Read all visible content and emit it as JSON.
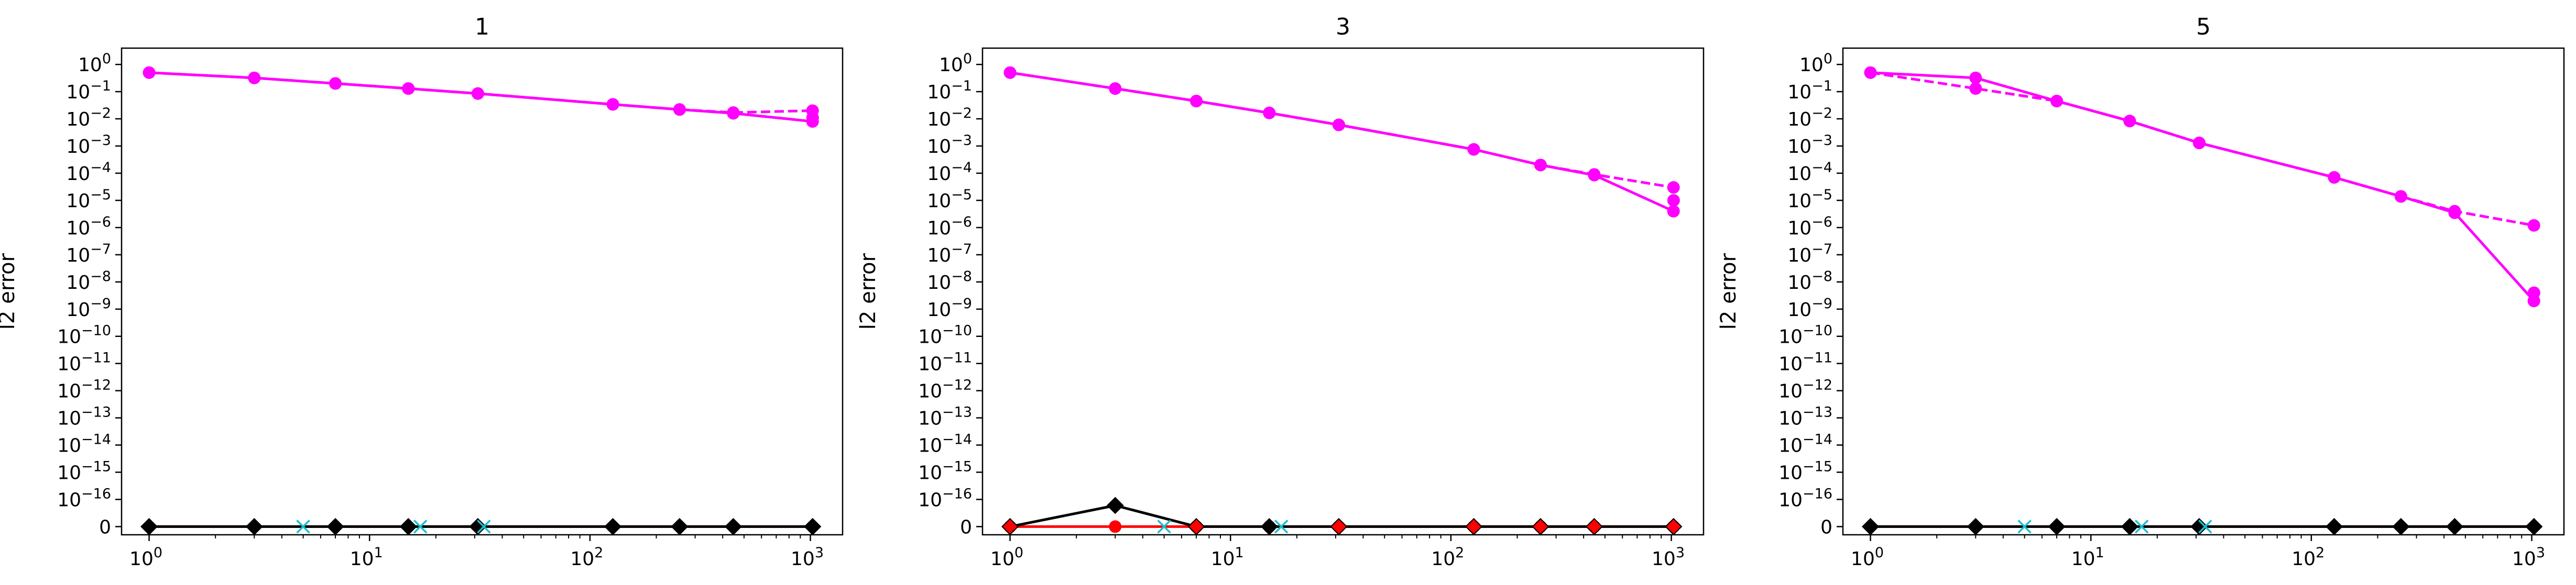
{
  "chart_data": [
    {
      "type": "line",
      "title": "1",
      "xlabel": "",
      "ylabel": "l2 error",
      "xscale": "log",
      "yscale": "symlog",
      "xlim": [
        0.75,
        1400
      ],
      "ylim": [
        -0.3,
        17.6
      ],
      "x_ticks": [
        "10^0",
        "10^1",
        "10^2",
        "10^3"
      ],
      "y_ticks": [
        "0",
        "10^-16",
        "10^-15",
        "10^-14",
        "10^-13",
        "10^-12",
        "10^-11",
        "10^-10",
        "10^-9",
        "10^-8",
        "10^-7",
        "10^-6",
        "10^-5",
        "10^-4",
        "10^-3",
        "10^-2",
        "10^-1",
        "10^0"
      ],
      "grid": false,
      "legend": "none",
      "series": [
        {
          "color": "#ff00ff",
          "style": "solid",
          "marker": "circle",
          "x": [
            1,
            3,
            7,
            15,
            31,
            127,
            255,
            447,
            1023,
            1024
          ],
          "y": [
            0.5,
            0.32,
            0.2,
            0.13,
            0.085,
            0.034,
            0.022,
            0.016,
            0.008,
            0.011
          ]
        },
        {
          "color": "#ff00ff",
          "style": "dashed",
          "marker": "circle",
          "x": [
            1,
            3,
            7,
            15,
            31,
            127,
            255,
            447,
            1023
          ],
          "y": [
            0.5,
            0.32,
            0.2,
            0.13,
            0.085,
            0.034,
            0.022,
            0.017,
            0.02
          ]
        },
        {
          "color": "#ff0000",
          "style": "solid",
          "marker": "diamond",
          "x": [
            1,
            3,
            7,
            15,
            31,
            127,
            255,
            447,
            1023,
            1024
          ],
          "y": [
            0,
            0,
            0,
            0,
            0,
            0,
            0,
            0,
            0,
            0
          ]
        },
        {
          "color": "#000000",
          "style": "solid",
          "marker": "diamond",
          "x": [
            1,
            3,
            7,
            15,
            31,
            127,
            255,
            447,
            1023,
            1024
          ],
          "y": [
            0,
            0,
            0,
            0,
            0,
            0,
            0,
            0,
            0,
            0
          ]
        },
        {
          "color": "#17becf",
          "style": "none",
          "marker": "x",
          "x": [
            5,
            17,
            33
          ],
          "y": [
            0,
            0,
            0
          ]
        }
      ]
    },
    {
      "type": "line",
      "title": "3",
      "xlabel": "",
      "ylabel": "l2 error",
      "xscale": "log",
      "yscale": "symlog",
      "xlim": [
        0.75,
        1400
      ],
      "ylim": [
        -0.3,
        17.6
      ],
      "x_ticks": [
        "10^0",
        "10^1",
        "10^2",
        "10^3"
      ],
      "y_ticks": [
        "0",
        "10^-16",
        "10^-15",
        "10^-14",
        "10^-13",
        "10^-12",
        "10^-11",
        "10^-10",
        "10^-9",
        "10^-8",
        "10^-7",
        "10^-6",
        "10^-5",
        "10^-4",
        "10^-3",
        "10^-2",
        "10^-1",
        "10^0"
      ],
      "grid": false,
      "legend": "none",
      "series": [
        {
          "color": "#ff00ff",
          "style": "solid",
          "marker": "circle",
          "x": [
            1,
            3,
            7,
            15,
            31,
            127,
            255,
            447,
            1023,
            1024
          ],
          "y": [
            0.5,
            0.13,
            0.045,
            0.0165,
            0.006,
            0.00075,
            0.0002,
            8.5e-05,
            4e-06,
            1e-05
          ]
        },
        {
          "color": "#ff00ff",
          "style": "dashed",
          "marker": "circle",
          "x": [
            1,
            3,
            7,
            15,
            31,
            127,
            255,
            447,
            1023
          ],
          "y": [
            0.5,
            0.13,
            0.045,
            0.0165,
            0.006,
            0.00075,
            0.0002,
            9e-05,
            3e-05
          ]
        },
        {
          "color": "#ff0000",
          "style": "solid",
          "marker": "circle",
          "x": [
            1,
            3,
            7,
            15,
            31,
            127,
            255,
            447,
            1023,
            1024
          ],
          "y": [
            0,
            0,
            0,
            0,
            0,
            0,
            0,
            0,
            0,
            0
          ]
        },
        {
          "color": "#000000",
          "style": "solid",
          "marker": "diamond",
          "x": [
            1,
            3,
            7,
            15,
            31,
            127,
            255,
            447,
            1023,
            1024
          ],
          "y": [
            0,
            6e-17,
            0,
            0,
            0,
            0,
            0,
            0,
            0,
            0
          ]
        },
        {
          "color": "#ff0000",
          "style": "none",
          "marker": "diamond",
          "x": [
            1,
            7,
            31,
            127,
            255,
            447,
            1024
          ],
          "y": [
            0,
            0,
            0,
            0,
            0,
            0,
            0
          ]
        },
        {
          "color": "#17becf",
          "style": "none",
          "marker": "x",
          "x": [
            5,
            17
          ],
          "y": [
            0,
            0
          ]
        }
      ]
    },
    {
      "type": "line",
      "title": "5",
      "xlabel": "",
      "ylabel": "l2 error",
      "xscale": "log",
      "yscale": "symlog",
      "xlim": [
        0.75,
        1400
      ],
      "ylim": [
        -0.3,
        17.6
      ],
      "x_ticks": [
        "10^0",
        "10^1",
        "10^2",
        "10^3"
      ],
      "y_ticks": [
        "0",
        "10^-16",
        "10^-15",
        "10^-14",
        "10^-13",
        "10^-12",
        "10^-11",
        "10^-10",
        "10^-9",
        "10^-8",
        "10^-7",
        "10^-6",
        "10^-5",
        "10^-4",
        "10^-3",
        "10^-2",
        "10^-1",
        "10^0"
      ],
      "grid": false,
      "legend": "none",
      "series": [
        {
          "color": "#ff00ff",
          "style": "solid",
          "marker": "circle",
          "x": [
            1,
            3,
            7,
            15,
            31,
            127,
            255,
            447,
            1023,
            1024
          ],
          "y": [
            0.5,
            0.32,
            0.045,
            0.0083,
            0.0013,
            7e-05,
            1.4e-05,
            3.5e-06,
            2e-09,
            4e-09
          ]
        },
        {
          "color": "#ff00ff",
          "style": "dashed",
          "marker": "circle",
          "x": [
            1,
            3,
            7,
            15,
            31,
            127,
            255,
            447,
            1023
          ],
          "y": [
            0.5,
            0.13,
            0.045,
            0.0083,
            0.0013,
            7e-05,
            1.4e-05,
            4e-06,
            1.2e-06
          ]
        },
        {
          "color": "#ff0000",
          "style": "solid",
          "marker": "diamond",
          "x": [
            1,
            3,
            7,
            15,
            31,
            127,
            255,
            447,
            1023,
            1024
          ],
          "y": [
            0,
            0,
            0,
            0,
            0,
            0,
            0,
            0,
            0,
            0
          ]
        },
        {
          "color": "#000000",
          "style": "solid",
          "marker": "diamond",
          "x": [
            1,
            3,
            7,
            15,
            31,
            127,
            255,
            447,
            1023,
            1024
          ],
          "y": [
            0,
            0,
            0,
            0,
            0,
            0,
            0,
            0,
            0,
            0
          ]
        },
        {
          "color": "#17becf",
          "style": "none",
          "marker": "x",
          "x": [
            5,
            17,
            33
          ],
          "y": [
            0,
            0,
            0
          ]
        }
      ]
    }
  ]
}
